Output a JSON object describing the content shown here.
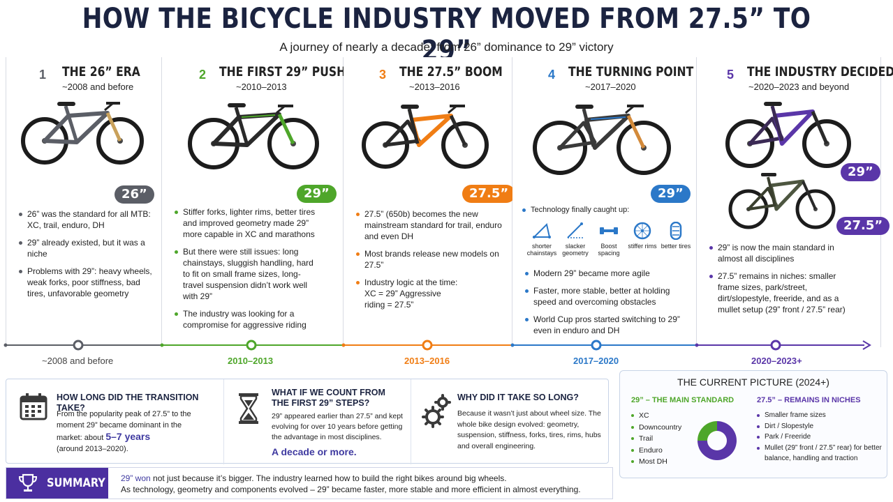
{
  "title": "HOW THE BICYCLE INDUSTRY MOVED FROM 27.5” TO 29”",
  "subtitle": "A journey of nearly a decade: from 26” dominance to 29” victory",
  "colors": {
    "era1": "#5b5e66",
    "era2": "#4ea62a",
    "era3": "#f07d14",
    "era4": "#2b78c8",
    "era5": "#5a36a8"
  },
  "eras": [
    {
      "num": "1",
      "title": "THE 26” ERA",
      "period": "~2008 and before",
      "badge": "26”",
      "bullets": [
        "26” was the standard for all MTB: XC, trail, enduro, DH",
        "29” already existed, but it was a niche",
        "Problems with 29”: heavy wheels, weak forks, poor stiffness, bad tires, unfavorable geometry"
      ],
      "timeline": "~2008 and before"
    },
    {
      "num": "2",
      "title": "THE FIRST 29” PUSH",
      "period": "~2010–2013",
      "badge": "29”",
      "bullets": [
        "Stiffer forks, lighter rims, better tires and improved geometry made 29” more capable in XC and marathons",
        "But there were still issues: long chainstays, sluggish handling, hard to fit on small frame sizes, long-travel suspension didn’t work well with 29”",
        "The industry was looking for a compromise for aggressive riding"
      ],
      "timeline": "2010–2013"
    },
    {
      "num": "3",
      "title": "THE 27.5” BOOM",
      "period": "~2013–2016",
      "badge": "27.5”",
      "bullets": [
        "27.5” (650b) becomes the new mainstream standard for trail, enduro and even DH",
        "Most brands release new models on 27.5”",
        "Industry logic at the time: XC = 29” Aggressive riding = 27.5”"
      ],
      "timeline": "2013–2016"
    },
    {
      "num": "4",
      "title": "THE TURNING POINT",
      "period": "~2017–2020",
      "badge": "29”",
      "intro": "Technology finally caught up:",
      "tech": [
        {
          "icon": "shorter-chainstays-icon",
          "label": "shorter chainstays"
        },
        {
          "icon": "slacker-geometry-icon",
          "label": "slacker geometry"
        },
        {
          "icon": "boost-spacing-icon",
          "label": "Boost spacing"
        },
        {
          "icon": "stiffer-rims-icon",
          "label": "stiffer rims"
        },
        {
          "icon": "better-tires-icon",
          "label": "better tires"
        }
      ],
      "bullets": [
        "Modern 29” became more agile",
        "Faster, more stable, better at holding speed and overcoming obstacles",
        "World Cup pros started switching to 29” even in enduro and DH"
      ],
      "timeline": "2017–2020"
    },
    {
      "num": "5",
      "title": "THE INDUSTRY DECIDED",
      "period": "~2020–2023 and beyond",
      "badge": "29”",
      "badge2": "27.5”",
      "bullets": [
        "29” is now the main standard in almost all disciplines",
        "27.5” remains in niches: smaller frame sizes, park/street, dirt/slopestyle, freeride, and as a mullet setup (29” front / 27.5” rear)"
      ],
      "timeline": "2020–2023+"
    }
  ],
  "questions": [
    {
      "icon": "calendar-icon",
      "title": "HOW LONG DID THE TRANSITION TAKE?",
      "text_before": "From the popularity peak of 27.5” to the moment 29” became dominant in the market: about",
      "highlight": "5–7 years",
      "text_after": "(around 2013–2020)."
    },
    {
      "icon": "hourglass-icon",
      "title": "WHAT IF WE COUNT FROM THE FIRST 29” STEPS?",
      "text": "29” appeared earlier than 27.5” and kept evolving for over 10 years before getting the advantage in most disciplines.",
      "highlight": "A decade or more."
    },
    {
      "icon": "gears-icon",
      "title": "WHY DID IT TAKE SO LONG?",
      "text": "Because it wasn’t just about wheel size. The whole bike design evolved: geometry, suspension, stiffness, forks, tires, rims, hubs and overall engineering."
    }
  ],
  "current": {
    "title": "THE CURRENT PICTURE (2024+)",
    "left_head": "29” – THE MAIN STANDARD",
    "left_items": [
      "XC",
      "Downcountry",
      "Trail",
      "Enduro",
      "Most DH"
    ],
    "right_head": "27.5” – REMAINS IN NICHES",
    "right_items": [
      "Smaller frame sizes",
      "Dirt / Slopestyle",
      "Park / Freeride",
      "Mullet (29” front / 27.5” rear) for better balance, handling and traction"
    ]
  },
  "chart_data": {
    "type": "pie",
    "categories": [
      "29”",
      "27.5”"
    ],
    "values": [
      75,
      25
    ],
    "colors": [
      "#5a36a8",
      "#4ea62a"
    ]
  },
  "summary": {
    "label": "SUMMARY",
    "line1_strong": "29” won",
    "line1_rest": " not just because it’s bigger. The industry learned how to build the right bikes around big wheels.",
    "line2": "As technology, geometry and components evolved – 29” became faster, more stable and more efficient in almost everything."
  }
}
